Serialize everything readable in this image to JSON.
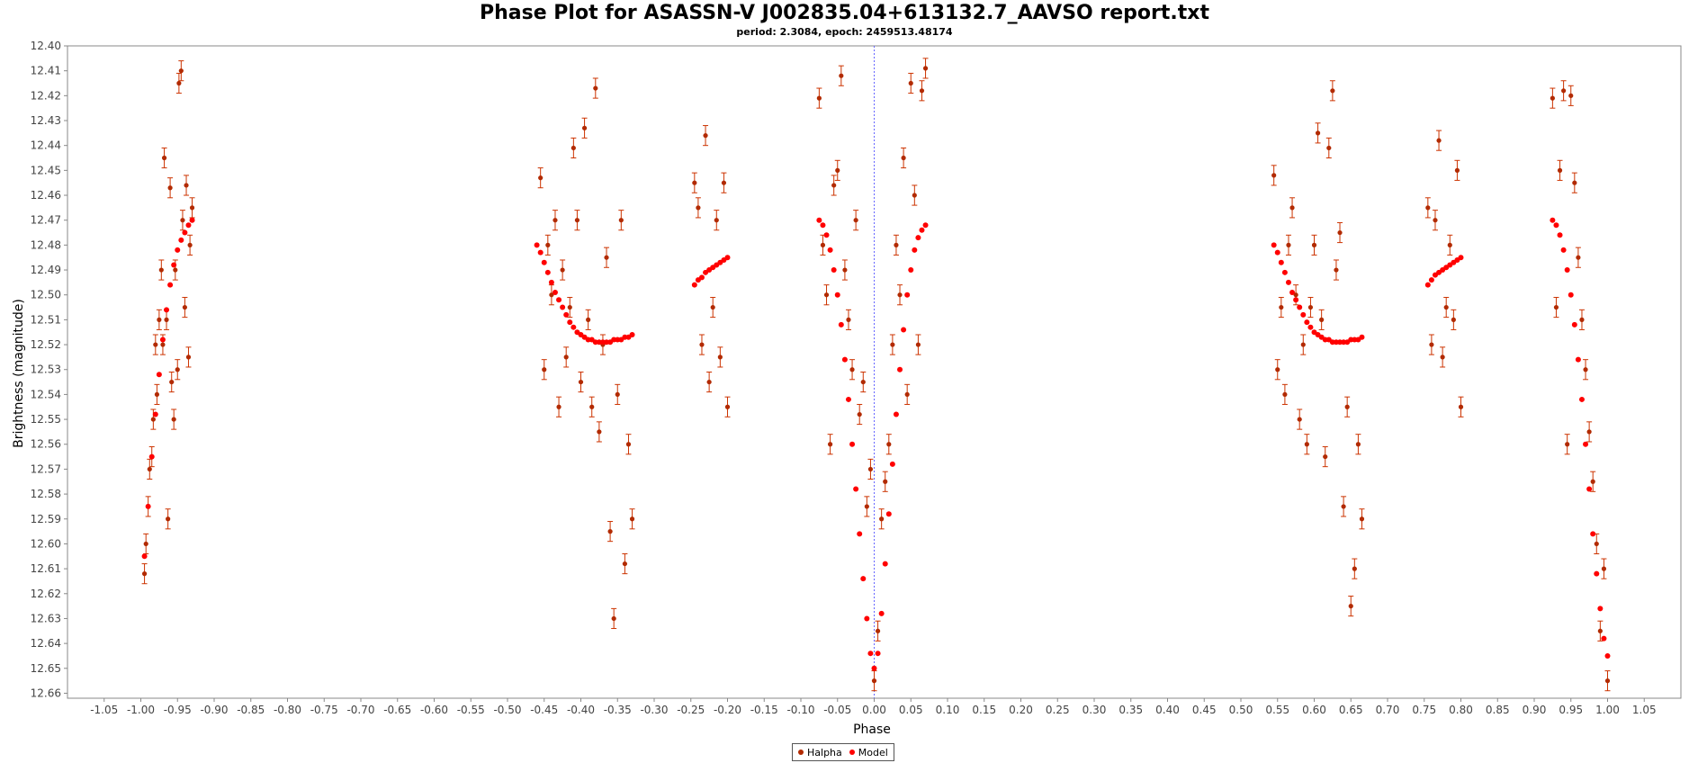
{
  "chart_data": {
    "type": "scatter",
    "title": "Phase Plot for ASASSN-V J002835.04+613132.7_AAVSO report.txt",
    "subtitle": "period: 2.3084, epoch: 2459513.48174",
    "xlabel": "Phase",
    "ylabel": "Brightness (magnitude)",
    "xlim": [
      -1.1,
      1.1
    ],
    "ylim": [
      12.4,
      12.662
    ],
    "y_inverted": true,
    "x_ticks": [
      -1.05,
      -1.0,
      -0.95,
      -0.9,
      -0.85,
      -0.8,
      -0.75,
      -0.7,
      -0.65,
      -0.6,
      -0.55,
      -0.5,
      -0.45,
      -0.4,
      -0.35,
      -0.3,
      -0.25,
      -0.2,
      -0.15,
      -0.1,
      -0.05,
      0.0,
      0.05,
      0.1,
      0.15,
      0.2,
      0.25,
      0.3,
      0.35,
      0.4,
      0.45,
      0.5,
      0.55,
      0.6,
      0.65,
      0.7,
      0.75,
      0.8,
      0.85,
      0.9,
      0.95,
      1.0,
      1.05
    ],
    "y_ticks": [
      12.4,
      12.41,
      12.42,
      12.43,
      12.44,
      12.45,
      12.46,
      12.47,
      12.48,
      12.49,
      12.5,
      12.51,
      12.52,
      12.53,
      12.54,
      12.55,
      12.56,
      12.57,
      12.58,
      12.59,
      12.6,
      12.61,
      12.62,
      12.63,
      12.64,
      12.65,
      12.66
    ],
    "grid": false,
    "legend_position": "bottom-center",
    "vertical_marker_x": 0.0,
    "colors": {
      "halpha": "#b22a00",
      "errorbar": "#cc3300",
      "model": "#ff0000",
      "marker_line": "#6666ff"
    },
    "series": [
      {
        "name": "Halpha",
        "error": 0.004,
        "x": [
          -0.995,
          -0.993,
          -0.99,
          -0.988,
          -0.985,
          -0.983,
          -0.98,
          -0.978,
          -0.975,
          -0.972,
          -0.97,
          -0.968,
          -0.965,
          -0.963,
          -0.96,
          -0.958,
          -0.955,
          -0.953,
          -0.95,
          -0.948,
          -0.945,
          -0.943,
          -0.94,
          -0.938,
          -0.935,
          -0.933,
          -0.93,
          -0.455,
          -0.45,
          -0.445,
          -0.44,
          -0.435,
          -0.43,
          -0.425,
          -0.42,
          -0.415,
          -0.41,
          -0.405,
          -0.4,
          -0.395,
          -0.39,
          -0.385,
          -0.38,
          -0.375,
          -0.37,
          -0.365,
          -0.36,
          -0.355,
          -0.35,
          -0.345,
          -0.34,
          -0.335,
          -0.33,
          -0.245,
          -0.24,
          -0.235,
          -0.23,
          -0.225,
          -0.22,
          -0.215,
          -0.21,
          -0.205,
          -0.2,
          -0.075,
          -0.07,
          -0.065,
          -0.06,
          -0.055,
          -0.05,
          -0.045,
          -0.04,
          -0.035,
          -0.03,
          -0.025,
          -0.02,
          -0.015,
          -0.01,
          -0.005,
          0.0,
          0.005,
          0.01,
          0.015,
          0.02,
          0.025,
          0.03,
          0.035,
          0.04,
          0.045,
          0.05,
          0.055,
          0.06,
          0.065,
          0.07,
          0.545,
          0.55,
          0.555,
          0.56,
          0.565,
          0.57,
          0.575,
          0.58,
          0.585,
          0.59,
          0.595,
          0.6,
          0.605,
          0.61,
          0.615,
          0.62,
          0.625,
          0.63,
          0.635,
          0.64,
          0.645,
          0.65,
          0.655,
          0.66,
          0.665,
          0.755,
          0.76,
          0.765,
          0.77,
          0.775,
          0.78,
          0.785,
          0.79,
          0.795,
          0.8,
          0.925,
          0.93,
          0.935,
          0.94,
          0.945,
          0.95,
          0.955,
          0.96,
          0.965,
          0.97,
          0.975,
          0.98,
          0.985,
          0.99,
          0.995,
          1.0
        ],
        "y": [
          12.612,
          12.6,
          12.585,
          12.57,
          12.565,
          12.55,
          12.52,
          12.54,
          12.51,
          12.49,
          12.52,
          12.445,
          12.51,
          12.59,
          12.457,
          12.535,
          12.55,
          12.49,
          12.53,
          12.415,
          12.41,
          12.47,
          12.505,
          12.456,
          12.525,
          12.48,
          12.465,
          12.453,
          12.53,
          12.48,
          12.5,
          12.47,
          12.545,
          12.49,
          12.525,
          12.505,
          12.441,
          12.47,
          12.535,
          12.433,
          12.51,
          12.545,
          12.417,
          12.555,
          12.52,
          12.485,
          12.595,
          12.63,
          12.54,
          12.47,
          12.608,
          12.56,
          12.59,
          12.455,
          12.465,
          12.52,
          12.436,
          12.535,
          12.505,
          12.47,
          12.525,
          12.455,
          12.545,
          12.421,
          12.48,
          12.5,
          12.56,
          12.456,
          12.45,
          12.412,
          12.49,
          12.51,
          12.53,
          12.47,
          12.548,
          12.535,
          12.585,
          12.57,
          12.655,
          12.635,
          12.59,
          12.575,
          12.56,
          12.52,
          12.48,
          12.5,
          12.445,
          12.54,
          12.415,
          12.46,
          12.52,
          12.418,
          12.409,
          12.452,
          12.53,
          12.505,
          12.54,
          12.48,
          12.465,
          12.5,
          12.55,
          12.52,
          12.56,
          12.505,
          12.48,
          12.435,
          12.51,
          12.565,
          12.441,
          12.418,
          12.49,
          12.475,
          12.585,
          12.545,
          12.625,
          12.61,
          12.56,
          12.59,
          12.465,
          12.52,
          12.47,
          12.438,
          12.525,
          12.505,
          12.48,
          12.51,
          12.45,
          12.545,
          12.421,
          12.505,
          12.45,
          12.418,
          12.56,
          12.42,
          12.455,
          12.485,
          12.51,
          12.53,
          12.555,
          12.575,
          12.6,
          12.635,
          12.61,
          12.655
        ]
      },
      {
        "name": "Model",
        "x": [
          -0.995,
          -0.99,
          -0.985,
          -0.98,
          -0.975,
          -0.97,
          -0.965,
          -0.96,
          -0.955,
          -0.95,
          -0.945,
          -0.94,
          -0.935,
          -0.93,
          -0.46,
          -0.455,
          -0.45,
          -0.445,
          -0.44,
          -0.435,
          -0.43,
          -0.425,
          -0.42,
          -0.415,
          -0.41,
          -0.405,
          -0.4,
          -0.395,
          -0.39,
          -0.385,
          -0.38,
          -0.375,
          -0.37,
          -0.365,
          -0.36,
          -0.355,
          -0.35,
          -0.345,
          -0.34,
          -0.335,
          -0.33,
          -0.245,
          -0.24,
          -0.235,
          -0.23,
          -0.225,
          -0.22,
          -0.215,
          -0.21,
          -0.205,
          -0.2,
          -0.075,
          -0.07,
          -0.065,
          -0.06,
          -0.055,
          -0.05,
          -0.045,
          -0.04,
          -0.035,
          -0.03,
          -0.025,
          -0.02,
          -0.015,
          -0.01,
          -0.005,
          0.0,
          0.005,
          0.01,
          0.015,
          0.02,
          0.025,
          0.03,
          0.035,
          0.04,
          0.045,
          0.05,
          0.055,
          0.06,
          0.065,
          0.07,
          0.545,
          0.55,
          0.555,
          0.56,
          0.565,
          0.57,
          0.575,
          0.58,
          0.585,
          0.59,
          0.595,
          0.6,
          0.605,
          0.61,
          0.615,
          0.62,
          0.625,
          0.63,
          0.635,
          0.64,
          0.645,
          0.65,
          0.655,
          0.66,
          0.665,
          0.755,
          0.76,
          0.765,
          0.77,
          0.775,
          0.78,
          0.785,
          0.79,
          0.795,
          0.8,
          0.925,
          0.93,
          0.935,
          0.94,
          0.945,
          0.95,
          0.955,
          0.96,
          0.965,
          0.97,
          0.975,
          0.98,
          0.985,
          0.99,
          0.995,
          1.0
        ],
        "y": [
          12.605,
          12.585,
          12.565,
          12.548,
          12.532,
          12.518,
          12.506,
          12.496,
          12.488,
          12.482,
          12.478,
          12.475,
          12.472,
          12.47,
          12.48,
          12.483,
          12.487,
          12.491,
          12.495,
          12.499,
          12.502,
          12.505,
          12.508,
          12.511,
          12.513,
          12.515,
          12.516,
          12.517,
          12.518,
          12.518,
          12.519,
          12.519,
          12.519,
          12.519,
          12.519,
          12.518,
          12.518,
          12.518,
          12.517,
          12.517,
          12.516,
          12.496,
          12.494,
          12.493,
          12.491,
          12.49,
          12.489,
          12.488,
          12.487,
          12.486,
          12.485,
          12.47,
          12.472,
          12.476,
          12.482,
          12.49,
          12.5,
          12.512,
          12.526,
          12.542,
          12.56,
          12.578,
          12.596,
          12.614,
          12.63,
          12.644,
          12.65,
          12.644,
          12.628,
          12.608,
          12.588,
          12.568,
          12.548,
          12.53,
          12.514,
          12.5,
          12.49,
          12.482,
          12.477,
          12.474,
          12.472,
          12.48,
          12.483,
          12.487,
          12.491,
          12.495,
          12.499,
          12.502,
          12.505,
          12.508,
          12.511,
          12.513,
          12.515,
          12.516,
          12.517,
          12.518,
          12.518,
          12.519,
          12.519,
          12.519,
          12.519,
          12.519,
          12.518,
          12.518,
          12.518,
          12.517,
          12.496,
          12.494,
          12.492,
          12.491,
          12.49,
          12.489,
          12.488,
          12.487,
          12.486,
          12.485,
          12.47,
          12.472,
          12.476,
          12.482,
          12.49,
          12.5,
          12.512,
          12.526,
          12.542,
          12.56,
          12.578,
          12.596,
          12.612,
          12.626,
          12.638,
          12.645
        ]
      }
    ]
  }
}
